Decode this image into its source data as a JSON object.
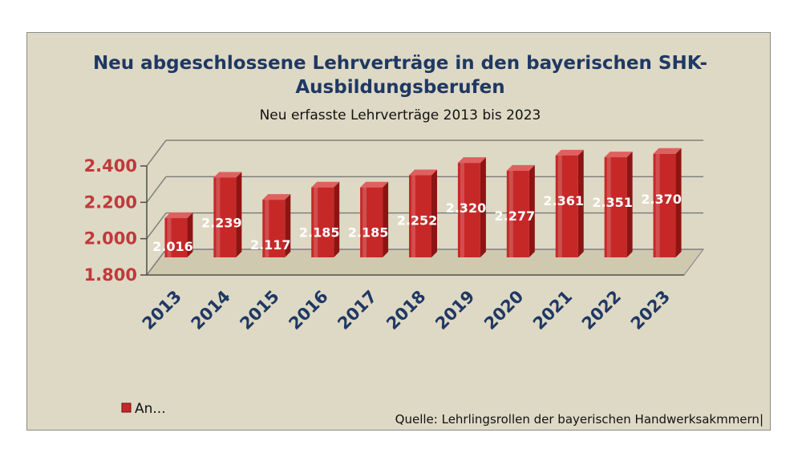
{
  "chart_data": {
    "type": "bar",
    "title_lines": [
      "Neu abgeschlossene Lehrverträge in den bayerischen SHK-",
      "Ausbildungsberufen"
    ],
    "subtitle": "Neu erfasste Lehrverträge 2013 bis 2023",
    "categories": [
      "2013",
      "2014",
      "2015",
      "2016",
      "2017",
      "2018",
      "2019",
      "2020",
      "2021",
      "2022",
      "2023"
    ],
    "values": [
      2016,
      2239,
      2117,
      2185,
      2185,
      2252,
      2320,
      2277,
      2361,
      2351,
      2370
    ],
    "data_labels": [
      "2.016",
      "2.239",
      "2.117",
      "2.185",
      "2.185",
      "2.252",
      "2.320",
      "2.277",
      "2.361",
      "2.351",
      "2.370"
    ],
    "ylim": [
      1800,
      2400
    ],
    "yticks": [
      1800,
      2000,
      2200,
      2400
    ],
    "ytick_labels": [
      "1.800",
      "2.000",
      "2.200",
      "2.400"
    ],
    "grid": true,
    "legend": {
      "label": "An...",
      "placement": "bottom-left"
    },
    "source": "Quelle: Lehrlingsrollen der bayerischen Handwerksakmmern|",
    "colors": {
      "bar": "#c62828",
      "bar_dark": "#8e1414",
      "bar_top": "#e06060",
      "background": "#ded9c4"
    }
  }
}
